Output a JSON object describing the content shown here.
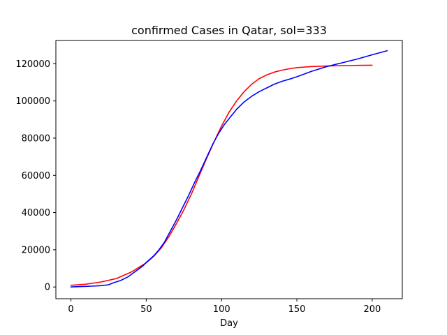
{
  "chart_data": {
    "type": "line",
    "title": "confirmed Cases in Qatar, sol=333",
    "xlabel": "Day",
    "ylabel": "",
    "xlim": [
      -10,
      220
    ],
    "ylim": [
      -6300,
      132500
    ],
    "xticks": [
      0,
      50,
      100,
      150,
      200
    ],
    "xtick_labels": [
      "0",
      "50",
      "100",
      "150",
      "200"
    ],
    "yticks": [
      0,
      20000,
      40000,
      60000,
      80000,
      100000,
      120000
    ],
    "ytick_labels": [
      "0",
      "20000",
      "40000",
      "60000",
      "80000",
      "100000",
      "120000"
    ],
    "grid": false,
    "series": [
      {
        "color": "#ff0000",
        "x": [
          0,
          10,
          20,
          30,
          40,
          50,
          55,
          60,
          65,
          70,
          75,
          80,
          85,
          90,
          95,
          100,
          105,
          110,
          115,
          120,
          125,
          130,
          135,
          140,
          145,
          150,
          160,
          170,
          180,
          190,
          200
        ],
        "values": [
          900,
          1500,
          2700,
          4500,
          8000,
          13000,
          16500,
          21000,
          27000,
          34000,
          41500,
          50000,
          59500,
          69000,
          78000,
          86500,
          94000,
          100000,
          105000,
          109000,
          112000,
          114000,
          115500,
          116500,
          117300,
          117900,
          118500,
          118800,
          119000,
          119100,
          119200
        ]
      },
      {
        "color": "#0000ff",
        "x": [
          0,
          5,
          10,
          15,
          20,
          25,
          28,
          33,
          38,
          43,
          48,
          50,
          55,
          58,
          62,
          66,
          70,
          74,
          78,
          82,
          86,
          90,
          94,
          98,
          102,
          106,
          110,
          115,
          120,
          125,
          130,
          135,
          140,
          145,
          150,
          155,
          160,
          170,
          180,
          190,
          200,
          210
        ],
        "values": [
          0,
          200,
          350,
          500,
          700,
          1200,
          2200,
          3500,
          5500,
          8500,
          11500,
          13200,
          16800,
          19500,
          24000,
          30000,
          36000,
          42500,
          49000,
          56000,
          62500,
          69500,
          76500,
          82500,
          87500,
          91500,
          95500,
          99500,
          102500,
          105000,
          107000,
          109000,
          110500,
          111700,
          113000,
          114500,
          116000,
          118500,
          120500,
          122500,
          124800,
          127000
        ]
      }
    ]
  }
}
